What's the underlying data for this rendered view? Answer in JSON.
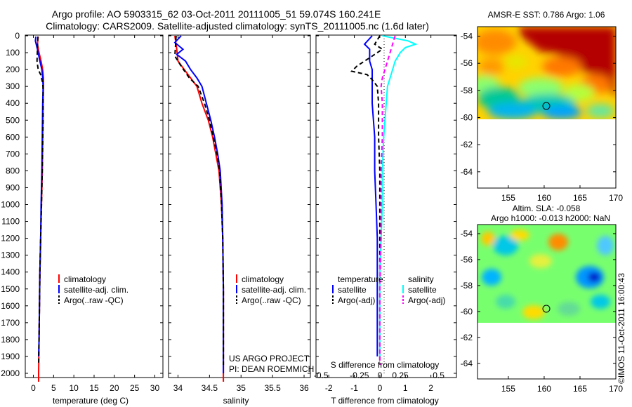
{
  "header": {
    "title_line1": "Argo profile: AO 5903315_62 03-Oct-2011 20111005_51 59.074S 160.241E",
    "title_line2": "Climatology: CARS2009. Satellite-adjusted climatology: synTS_20111005.nc (1.6d later)"
  },
  "colors": {
    "climatology": "#ff0000",
    "satellite_adj": "#0000ff",
    "argo": "#000000",
    "satellite_salinity": "#00ffff",
    "argo_adj_salinity": "#ff00ff"
  },
  "chart_data": [
    {
      "type": "line",
      "name": "temperature",
      "xlabel": "temperature (deg C)",
      "ylabel": "",
      "xlim": [
        -2,
        32
      ],
      "ylim": [
        2050,
        0
      ],
      "xticks": [
        "0",
        "5",
        "10",
        "15",
        "20",
        "25",
        "30"
      ],
      "yticks": [
        "0",
        "100",
        "200",
        "300",
        "400",
        "500",
        "600",
        "700",
        "800",
        "900",
        "1000",
        "1100",
        "1200",
        "1300",
        "1400",
        "1500",
        "1600",
        "1700",
        "1800",
        "1900",
        "2000"
      ],
      "legend": [
        "climatology",
        "satellite-adj. clim.",
        "Argo(..raw -QC)"
      ],
      "series": [
        {
          "name": "climatology",
          "style": "solid",
          "color": "#ff0000",
          "points": [
            [
              1.2,
              5
            ],
            [
              1.0,
              50
            ],
            [
              1.4,
              100
            ],
            [
              1.9,
              150
            ],
            [
              2.3,
              200
            ],
            [
              2.5,
              250
            ],
            [
              2.5,
              300
            ],
            [
              2.4,
              400
            ],
            [
              2.3,
              600
            ],
            [
              2.2,
              800
            ],
            [
              2.0,
              1000
            ],
            [
              1.8,
              1200
            ],
            [
              1.6,
              1400
            ],
            [
              1.5,
              1600
            ],
            [
              1.4,
              1800
            ],
            [
              1.3,
              2000
            ],
            [
              1.3,
              2050
            ]
          ]
        },
        {
          "name": "satellite-adj. clim.",
          "style": "solid",
          "color": "#0000ff",
          "points": [
            [
              0.6,
              5
            ],
            [
              0.5,
              30
            ],
            [
              1.0,
              80
            ],
            [
              1.6,
              150
            ],
            [
              2.1,
              200
            ],
            [
              2.3,
              250
            ],
            [
              2.4,
              300
            ],
            [
              2.3,
              400
            ],
            [
              2.2,
              600
            ],
            [
              2.1,
              800
            ],
            [
              1.9,
              1000
            ],
            [
              1.8,
              1200
            ],
            [
              1.6,
              1400
            ],
            [
              1.5,
              1600
            ],
            [
              1.4,
              1800
            ],
            [
              1.3,
              1900
            ]
          ]
        },
        {
          "name": "Argo(..raw -QC)",
          "style": "dashed",
          "color": "#000000",
          "points": [
            [
              1.1,
              5
            ],
            [
              1.0,
              80
            ],
            [
              0.9,
              150
            ],
            [
              1.2,
              200
            ],
            [
              1.8,
              230
            ],
            [
              2.3,
              280
            ],
            [
              2.4,
              320
            ],
            [
              2.4,
              500
            ],
            [
              2.2,
              800
            ],
            [
              2.0,
              1000
            ],
            [
              1.8,
              1200
            ],
            [
              1.6,
              1400
            ],
            [
              1.5,
              1600
            ],
            [
              1.4,
              1800
            ],
            [
              1.3,
              1950
            ]
          ]
        }
      ],
      "annotations": []
    },
    {
      "type": "line",
      "name": "salinity",
      "xlabel": "salinity",
      "ylabel": "",
      "xlim": [
        33.85,
        36.1
      ],
      "ylim": [
        2050,
        0
      ],
      "xticks": [
        "34",
        "34.5",
        "35",
        "35.5",
        "36"
      ],
      "xtick_values": [
        34,
        34.5,
        35,
        35.5,
        36
      ],
      "legend": [
        "climatology",
        "satellite-adj. clim.",
        "Argo(..raw -QC)"
      ],
      "series": [
        {
          "name": "climatology",
          "style": "solid",
          "color": "#ff0000",
          "points": [
            [
              33.95,
              0
            ],
            [
              33.98,
              80
            ],
            [
              34.0,
              150
            ],
            [
              34.1,
              200
            ],
            [
              34.2,
              250
            ],
            [
              34.3,
              300
            ],
            [
              34.38,
              400
            ],
            [
              34.48,
              500
            ],
            [
              34.55,
              600
            ],
            [
              34.6,
              700
            ],
            [
              34.65,
              800
            ],
            [
              34.69,
              1000
            ],
            [
              34.71,
              1200
            ],
            [
              34.72,
              1500
            ],
            [
              34.72,
              1800
            ],
            [
              34.72,
              2000
            ],
            [
              34.72,
              2050
            ]
          ]
        },
        {
          "name": "satellite-adj. clim.",
          "style": "solid",
          "color": "#0000ff",
          "points": [
            [
              34.05,
              0
            ],
            [
              33.95,
              40
            ],
            [
              34.08,
              80
            ],
            [
              33.98,
              110
            ],
            [
              34.12,
              150
            ],
            [
              34.2,
              200
            ],
            [
              34.3,
              250
            ],
            [
              34.38,
              300
            ],
            [
              34.45,
              400
            ],
            [
              34.52,
              500
            ],
            [
              34.58,
              600
            ],
            [
              34.63,
              700
            ],
            [
              34.67,
              800
            ],
            [
              34.7,
              1000
            ],
            [
              34.71,
              1200
            ],
            [
              34.72,
              1500
            ],
            [
              34.72,
              1800
            ],
            [
              34.72,
              2000
            ]
          ]
        },
        {
          "name": "Argo(..raw -QC)",
          "style": "dashed",
          "color": "#000000",
          "points": [
            [
              33.97,
              0
            ],
            [
              33.95,
              120
            ],
            [
              34.05,
              180
            ],
            [
              34.18,
              250
            ],
            [
              34.32,
              300
            ],
            [
              34.42,
              400
            ],
            [
              34.5,
              500
            ],
            [
              34.56,
              600
            ],
            [
              34.62,
              700
            ],
            [
              34.66,
              800
            ],
            [
              34.69,
              1000
            ],
            [
              34.71,
              1200
            ],
            [
              34.72,
              1500
            ],
            [
              34.72,
              1800
            ],
            [
              34.72,
              1950
            ]
          ]
        }
      ],
      "annotations": [
        "US ARGO PROJECT",
        "PI: DEAN ROEMMICH"
      ]
    },
    {
      "type": "line",
      "name": "difference",
      "xlabel": "T difference from climatology",
      "xlabel_top": "S difference from climatology",
      "xlim": [
        -2.5,
        3
      ],
      "ylim": [
        2050,
        0
      ],
      "xticks": [
        "-2",
        "-1",
        "0",
        "1",
        "2"
      ],
      "xtick_values": [
        -2,
        -1,
        0,
        1,
        2
      ],
      "xticks_s": [
        "-0.5",
        "-0.25",
        "0",
        "0.25",
        "0.5"
      ],
      "legend_groups": [
        {
          "title": "temperature",
          "items": [
            "satellite",
            "Argo(-adj)"
          ]
        },
        {
          "title": "salinity",
          "items": [
            "satellite",
            "Argo(-adj)"
          ]
        }
      ],
      "series": [
        {
          "name": "temperature satellite",
          "style": "solid",
          "color": "#0000ff",
          "points": [
            [
              -0.3,
              0
            ],
            [
              -0.6,
              50
            ],
            [
              -0.4,
              80
            ],
            [
              -0.4,
              150
            ],
            [
              -0.3,
              200
            ],
            [
              -0.3,
              300
            ],
            [
              -0.3,
              400
            ],
            [
              -0.2,
              600
            ],
            [
              -0.2,
              800
            ],
            [
              -0.15,
              1000
            ],
            [
              -0.1,
              1200
            ],
            [
              -0.1,
              1500
            ],
            [
              -0.1,
              1800
            ],
            [
              -0.1,
              1900
            ]
          ]
        },
        {
          "name": "temperature Argo(-adj)",
          "style": "dashed",
          "color": "#000000",
          "points": [
            [
              0,
              0
            ],
            [
              -0.2,
              50
            ],
            [
              0.1,
              80
            ],
            [
              -0.3,
              120
            ],
            [
              -0.9,
              180
            ],
            [
              -1.1,
              210
            ],
            [
              -0.5,
              230
            ],
            [
              -0.3,
              260
            ],
            [
              -0.1,
              300
            ],
            [
              -0.05,
              400
            ],
            [
              -0.05,
              600
            ],
            [
              0,
              800
            ],
            [
              0,
              1000
            ],
            [
              0,
              1200
            ],
            [
              0,
              1400
            ],
            [
              0,
              1600
            ],
            [
              0,
              1800
            ],
            [
              0,
              1950
            ]
          ]
        },
        {
          "name": "salinity satellite",
          "style": "solid",
          "color": "#00ffff",
          "points": [
            [
              0.1,
              0
            ],
            [
              1.1,
              30
            ],
            [
              1.4,
              50
            ],
            [
              1.0,
              70
            ],
            [
              0.8,
              100
            ],
            [
              0.6,
              150
            ],
            [
              0.5,
              200
            ],
            [
              0.4,
              250
            ],
            [
              0.3,
              300
            ],
            [
              0.25,
              400
            ],
            [
              0.15,
              600
            ],
            [
              0.1,
              800
            ],
            [
              0.1,
              1000
            ],
            [
              0.05,
              1200
            ],
            [
              0,
              1400
            ],
            [
              0,
              1600
            ],
            [
              0,
              1800
            ],
            [
              0,
              1900
            ]
          ]
        },
        {
          "name": "salinity Argo(-adj)",
          "style": "dashed",
          "color": "#ff00ff",
          "points": [
            [
              0.6,
              0
            ],
            [
              0.5,
              50
            ],
            [
              0.4,
              100
            ],
            [
              0.3,
              150
            ],
            [
              0.2,
              200
            ],
            [
              0.1,
              250
            ],
            [
              0.05,
              300
            ],
            [
              0.1,
              400
            ],
            [
              0.1,
              600
            ],
            [
              0.05,
              800
            ],
            [
              0.05,
              1000
            ],
            [
              0.05,
              1200
            ],
            [
              0,
              1500
            ],
            [
              0,
              1800
            ],
            [
              0,
              1950
            ]
          ]
        }
      ],
      "annotations": []
    }
  ],
  "maps": {
    "sst": {
      "title": "AMSR-E SST: 0.786 Argo: 1.06",
      "xticks": [
        "155",
        "160",
        "165",
        "170"
      ],
      "yticks": [
        "-54",
        "-56",
        "-58",
        "-60",
        "-62",
        "-64"
      ],
      "marker_lon": 160.241,
      "marker_lat": -59.074
    },
    "sla": {
      "title_line1": "Altim. SLA: -0.058",
      "title_line2": "Argo h1000: -0.013 h2000: NaN",
      "xticks": [
        "155",
        "160",
        "165",
        "170"
      ],
      "yticks": [
        "-54",
        "-56",
        "-58",
        "-60",
        "-62",
        "-64"
      ],
      "marker_lon": 160.241,
      "marker_lat": -59.074
    }
  },
  "footer": {
    "credit": "©IMOS 11-Oct-2011 16:00:43"
  }
}
